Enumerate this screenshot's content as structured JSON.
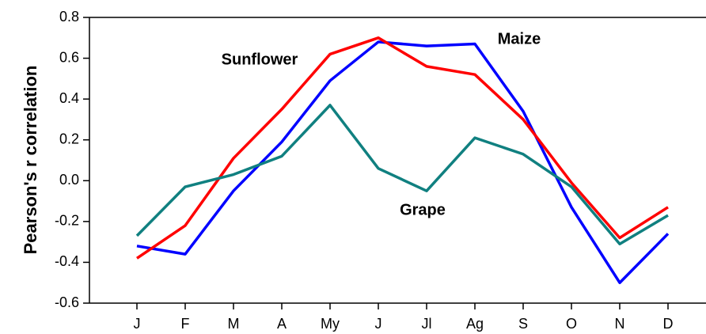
{
  "chart_data": {
    "type": "line",
    "y_label": "Pearson's r correlation",
    "categories": [
      "J",
      "F",
      "M",
      "A",
      "My",
      "J",
      "Jl",
      "Ag",
      "S",
      "O",
      "N",
      "D"
    ],
    "series": [
      {
        "name": "Maize",
        "color": "#0000ff",
        "values": [
          -0.32,
          -0.36,
          -0.05,
          0.19,
          0.49,
          0.68,
          0.66,
          0.67,
          0.34,
          -0.13,
          -0.5,
          -0.26
        ]
      },
      {
        "name": "Sunflower",
        "color": "#ff0000",
        "values": [
          -0.38,
          -0.22,
          0.11,
          0.35,
          0.62,
          0.7,
          0.56,
          0.52,
          0.3,
          -0.01,
          -0.28,
          -0.13
        ]
      },
      {
        "name": "Grape",
        "color": "#108080",
        "values": [
          -0.27,
          -0.03,
          0.03,
          0.12,
          0.37,
          0.06,
          -0.05,
          0.21,
          0.13,
          -0.03,
          -0.31,
          -0.17
        ]
      }
    ],
    "ylim": [
      -0.6,
      0.8
    ],
    "yticks": [
      -0.6,
      -0.4,
      -0.2,
      {
        "value": 0,
        "label": "0.0"
      },
      0.2,
      0.4,
      0.6,
      0.8
    ]
  }
}
